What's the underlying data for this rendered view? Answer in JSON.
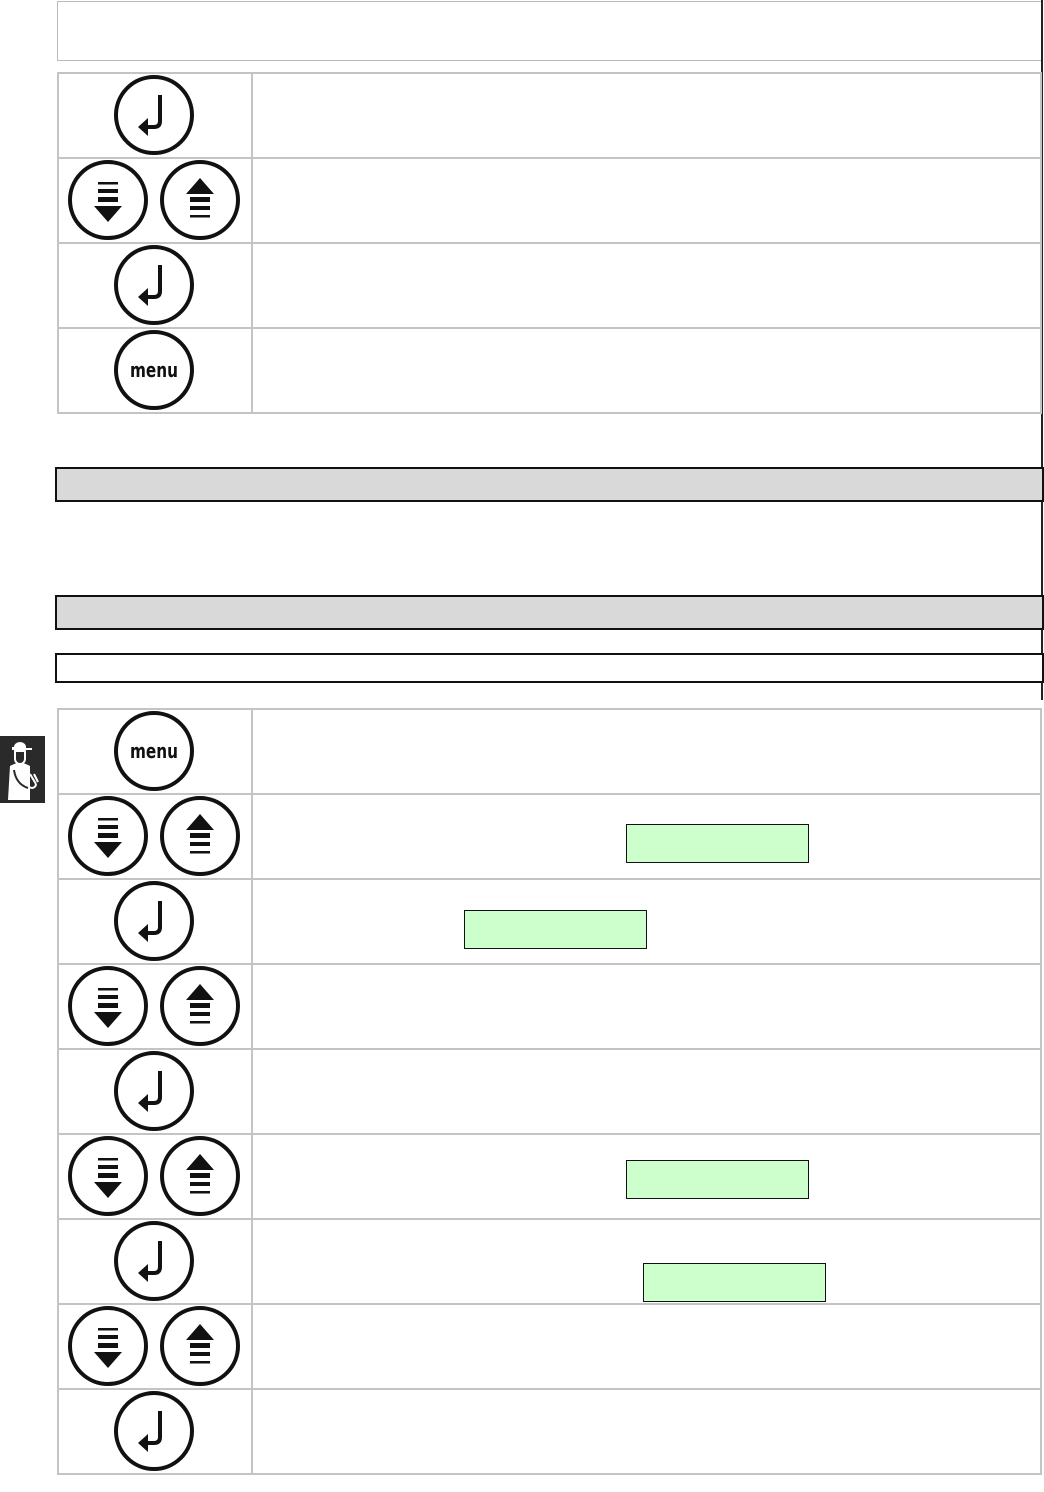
{
  "labels": {
    "menu": "menu"
  },
  "colors": {
    "highlight": "#ccffcc",
    "section_bar": "#d9d9d9"
  },
  "table1": [
    "enter",
    "updown",
    "enter",
    "menu"
  ],
  "table2": [
    "menu",
    "updown",
    "enter",
    "updown",
    "enter",
    "updown",
    "enter",
    "updown",
    "enter"
  ],
  "side_icon": "service-technician-icon"
}
